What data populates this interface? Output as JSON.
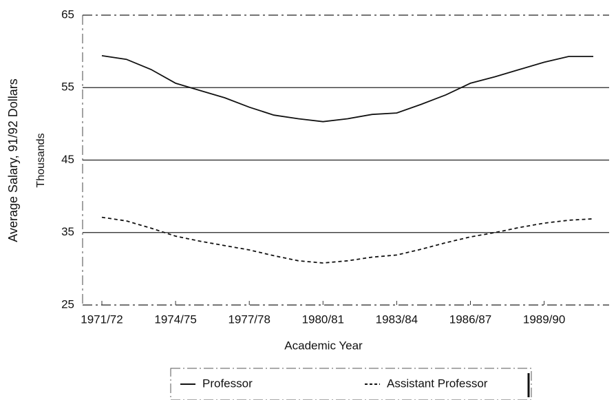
{
  "chart_data": {
    "type": "line",
    "y_label": "Average Salary, 91/92 Dollars",
    "y_sublabel": "Thousands",
    "x_label": "Academic Year",
    "categories": [
      "1971/72",
      null,
      null,
      "1974/75",
      null,
      null,
      "1977/78",
      null,
      null,
      "1980/81",
      null,
      null,
      "1983/84",
      null,
      null,
      "1986/87",
      null,
      null,
      "1989/90",
      null,
      null
    ],
    "series": [
      {
        "name": "Professor",
        "color": "#111111",
        "line_style": "solid",
        "values": [
          59.4,
          58.9,
          57.5,
          55.6,
          54.6,
          53.6,
          52.3,
          51.2,
          50.7,
          50.3,
          50.7,
          51.3,
          51.5,
          52.7,
          54.0,
          55.6,
          56.5,
          57.5,
          58.5,
          59.3,
          59.3
        ]
      },
      {
        "name": "Assistant Professor",
        "color": "#111111",
        "line_style": "dashed",
        "values": [
          37.1,
          36.6,
          35.6,
          34.5,
          33.8,
          33.2,
          32.6,
          31.8,
          31.1,
          30.8,
          31.1,
          31.6,
          31.9,
          32.7,
          33.6,
          34.4,
          35.0,
          35.7,
          36.3,
          36.7,
          36.9
        ]
      }
    ],
    "ylim": [
      25,
      65
    ],
    "yticks": [
      25,
      35,
      45,
      55,
      65
    ],
    "grid": true
  }
}
